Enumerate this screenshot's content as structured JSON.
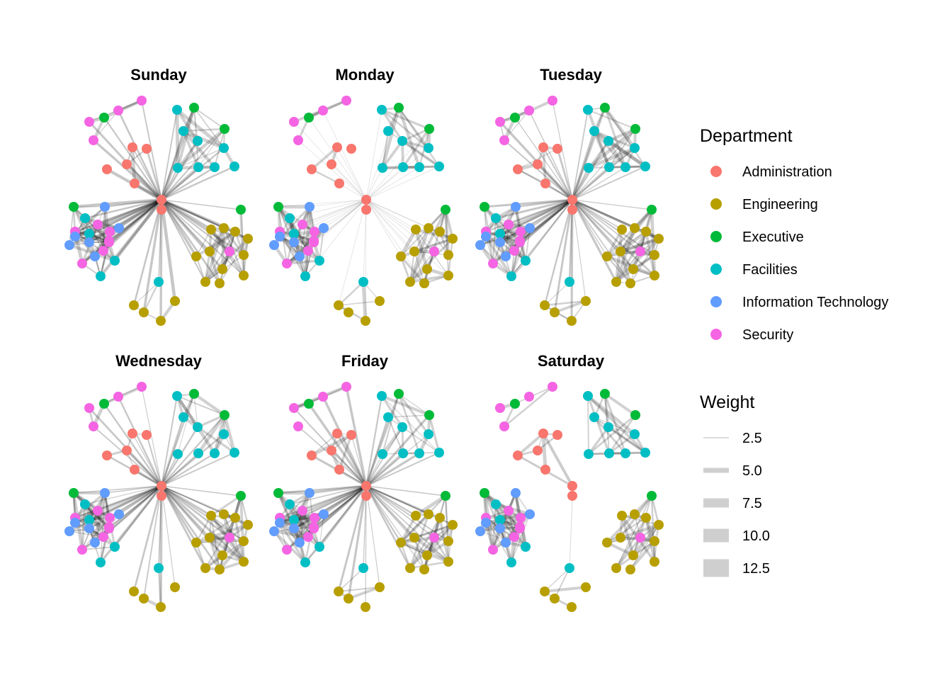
{
  "panels": [
    {
      "title": "Sunday"
    },
    {
      "title": "Monday"
    },
    {
      "title": "Tuesday"
    },
    {
      "title": "Wednesday"
    },
    {
      "title": "Friday"
    },
    {
      "title": "Saturday"
    }
  ],
  "legend_department": {
    "title": "Department",
    "items": [
      {
        "label": "Administration",
        "color": "#F8766D"
      },
      {
        "label": "Engineering",
        "color": "#B79F00"
      },
      {
        "label": "Executive",
        "color": "#00BA38"
      },
      {
        "label": "Facilities",
        "color": "#00BFC4"
      },
      {
        "label": "Information Technology",
        "color": "#619CFF"
      },
      {
        "label": "Security",
        "color": "#F564E3"
      }
    ]
  },
  "legend_weight": {
    "title": "Weight",
    "items": [
      {
        "label": "2.5",
        "value": 2.5
      },
      {
        "label": "5.0",
        "value": 5.0
      },
      {
        "label": "7.5",
        "value": 7.5
      },
      {
        "label": "10.0",
        "value": 10.0
      },
      {
        "label": "12.5",
        "value": 12.5
      }
    ]
  }
}
